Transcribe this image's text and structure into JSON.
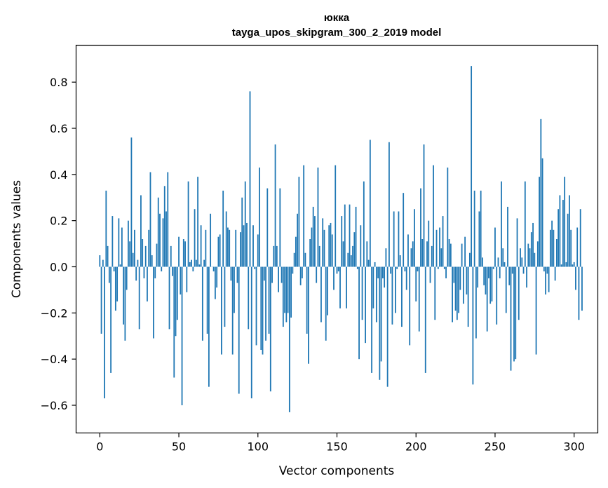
{
  "chart_data": {
    "type": "bar",
    "title": "юкка",
    "subtitle": "tayga_upos_skipgram_300_2_2019 model",
    "xlabel": "Vector components",
    "ylabel": "Components values",
    "xlim": [
      -15,
      315
    ],
    "ylim": [
      -0.72,
      0.96
    ],
    "x_ticks": [
      0,
      50,
      100,
      150,
      200,
      250,
      300
    ],
    "x_tick_labels": [
      "0",
      "50",
      "100",
      "150",
      "200",
      "250",
      "300"
    ],
    "y_ticks": [
      -0.6,
      -0.4,
      -0.2,
      0.0,
      0.2,
      0.4,
      0.6,
      0.8
    ],
    "y_tick_labels": [
      "−0.6",
      "−0.4",
      "−0.2",
      "0.0",
      "0.2",
      "0.4",
      "0.6",
      "0.8"
    ],
    "grid": false,
    "bar_color": "#1f77b4",
    "values": [
      0.05,
      -0.29,
      0.03,
      -0.57,
      0.33,
      0.09,
      -0.07,
      -0.46,
      0.22,
      -0.02,
      -0.19,
      -0.15,
      0.21,
      0.01,
      0.17,
      -0.25,
      -0.32,
      -0.1,
      0.2,
      0.11,
      0.56,
      0.06,
      0.16,
      -0.06,
      0.03,
      -0.27,
      0.31,
      0.12,
      -0.05,
      0.09,
      -0.15,
      0.16,
      0.41,
      0.05,
      -0.31,
      -0.05,
      0.1,
      0.3,
      0.23,
      -0.02,
      0.21,
      0.35,
      0.24,
      0.41,
      -0.27,
      0.09,
      -0.04,
      -0.48,
      -0.3,
      -0.23,
      0.13,
      -0.12,
      -0.6,
      0.12,
      0.11,
      -0.11,
      0.37,
      0.02,
      0.03,
      -0.02,
      0.25,
      0.03,
      0.39,
      0.01,
      0.18,
      -0.32,
      0.03,
      0.16,
      -0.29,
      -0.52,
      0.23,
      0.0,
      -0.02,
      -0.14,
      -0.09,
      0.13,
      0.14,
      -0.38,
      0.33,
      -0.26,
      0.24,
      0.17,
      0.16,
      -0.06,
      -0.38,
      -0.2,
      0.16,
      -0.07,
      -0.55,
      0.15,
      0.3,
      0.18,
      0.37,
      0.19,
      -0.27,
      0.76,
      -0.57,
      0.18,
      -0.01,
      -0.34,
      0.14,
      0.43,
      -0.36,
      -0.38,
      -0.06,
      -0.32,
      0.34,
      -0.29,
      -0.54,
      -0.07,
      0.09,
      0.53,
      0.09,
      -0.11,
      0.34,
      -0.07,
      -0.26,
      -0.2,
      -0.24,
      -0.2,
      -0.63,
      -0.22,
      -0.03,
      0.06,
      0.13,
      0.23,
      0.39,
      -0.08,
      -0.05,
      0.44,
      0.06,
      -0.29,
      -0.42,
      0.12,
      0.17,
      0.26,
      0.22,
      -0.07,
      0.43,
      0.09,
      -0.24,
      0.21,
      0.16,
      -0.32,
      -0.21,
      0.18,
      0.19,
      0.14,
      -0.1,
      0.44,
      -0.03,
      -0.02,
      -0.18,
      0.22,
      0.11,
      0.27,
      -0.18,
      0.06,
      0.27,
      0.05,
      0.09,
      0.15,
      0.26,
      -0.01,
      -0.4,
      0.18,
      -0.23,
      0.37,
      -0.33,
      0.11,
      0.03,
      0.55,
      -0.46,
      -0.18,
      0.02,
      -0.24,
      -0.05,
      -0.49,
      -0.41,
      -0.05,
      -0.09,
      0.08,
      -0.52,
      0.54,
      -0.03,
      -0.25,
      0.24,
      -0.2,
      -0.01,
      0.24,
      0.05,
      -0.26,
      0.32,
      -0.02,
      -0.1,
      0.14,
      -0.34,
      0.08,
      0.11,
      0.25,
      -0.15,
      -0.02,
      -0.28,
      0.34,
      0.12,
      0.53,
      -0.46,
      0.11,
      0.2,
      -0.07,
      0.09,
      0.44,
      -0.23,
      0.16,
      -0.01,
      0.17,
      0.08,
      0.22,
      -0.01,
      -0.05,
      0.43,
      0.12,
      0.1,
      -0.24,
      -0.07,
      -0.19,
      -0.23,
      -0.2,
      -0.1,
      0.1,
      -0.16,
      0.13,
      -0.12,
      -0.26,
      0.06,
      0.87,
      -0.51,
      0.33,
      -0.31,
      -0.09,
      0.24,
      0.33,
      0.04,
      -0.08,
      -0.12,
      -0.28,
      -0.05,
      -0.16,
      -0.15,
      -0.01,
      0.17,
      -0.25,
      0.04,
      -0.05,
      0.37,
      0.08,
      0.02,
      -0.2,
      0.26,
      -0.08,
      -0.45,
      -0.03,
      -0.41,
      -0.4,
      0.21,
      -0.23,
      0.08,
      0.04,
      -0.03,
      0.37,
      -0.09,
      0.1,
      0.08,
      0.15,
      0.19,
      0.06,
      -0.38,
      0.11,
      0.39,
      0.64,
      0.47,
      -0.02,
      -0.12,
      -0.03,
      -0.11,
      0.16,
      0.2,
      0.16,
      -0.06,
      0.12,
      0.25,
      0.31,
      0.01,
      0.29,
      0.39,
      0.02,
      0.23,
      0.31,
      0.16,
      0.01,
      0.02,
      -0.1,
      0.17,
      -0.23,
      0.25,
      -0.19
    ]
  }
}
